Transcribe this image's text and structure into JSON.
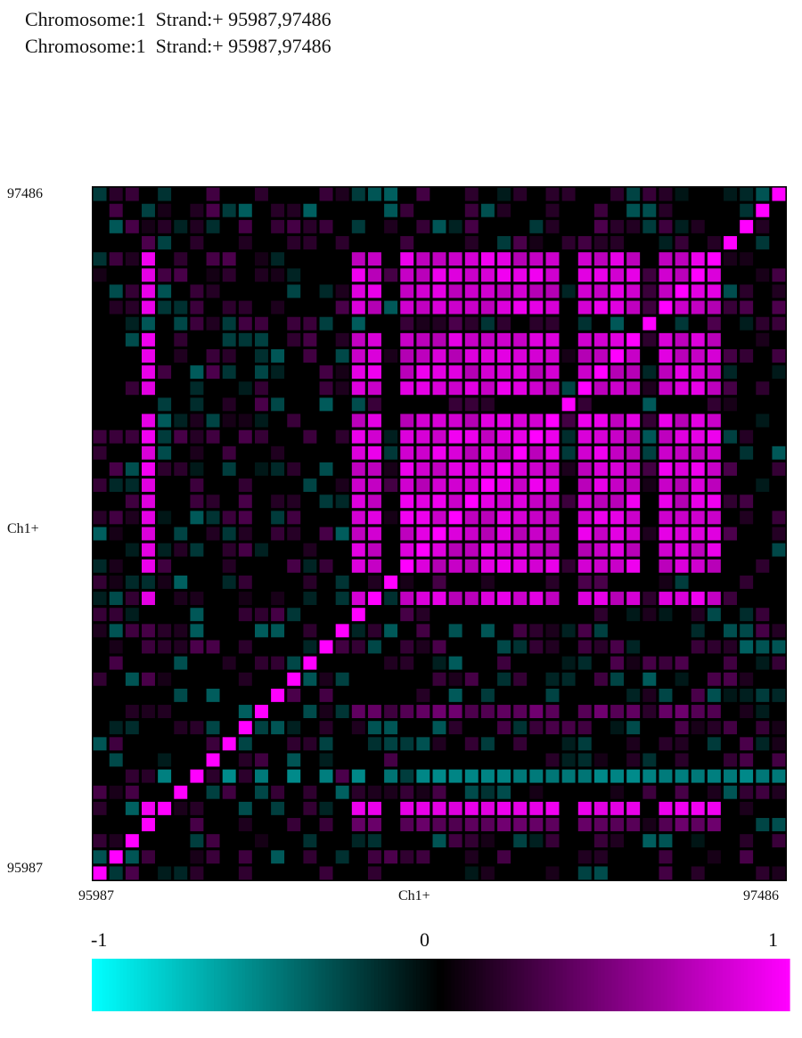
{
  "header": {
    "line1": "Chromosome:1  Strand:+ 95987,97486",
    "line2": "Chromosome:1  Strand:+ 95987,97486"
  },
  "colors": {
    "background": "#000000",
    "negative": "#00ffff",
    "positive": "#ff00ff",
    "zero": "#000000"
  },
  "chart_data": {
    "type": "heatmap",
    "x_label": "Ch1+",
    "y_label": "Ch1+",
    "x_ticks": [
      "95987",
      "97486"
    ],
    "y_ticks": [
      "95987",
      "97486"
    ],
    "x_range": [
      95987,
      97486
    ],
    "y_range": [
      95987,
      97486
    ],
    "grid_size": 43,
    "value_range": [
      -1,
      1
    ],
    "colorbar": {
      "labels": [
        "-1",
        "0",
        "1"
      ],
      "values": [
        -1,
        0,
        1
      ]
    },
    "block_positive_rows": [
      4,
      5,
      6,
      7,
      9,
      10,
      11,
      12,
      14,
      15,
      16,
      17,
      18,
      19,
      20,
      21,
      22,
      23,
      25
    ],
    "block_positive_cols": [
      16,
      17,
      19,
      20,
      21,
      22,
      23,
      24,
      25,
      26,
      27,
      28,
      30,
      31,
      32,
      33,
      35,
      36,
      37,
      38
    ],
    "block_value": 0.95,
    "row_stripe_rows": [
      38
    ],
    "row_stripe_cols": [
      3,
      16,
      17,
      19,
      20,
      21,
      22,
      23,
      24,
      25,
      26,
      27,
      28,
      30,
      31,
      32,
      33,
      35,
      36,
      37,
      38
    ],
    "column_stripe_cols": [
      3
    ],
    "column_stripe_rows": [
      4,
      5,
      6,
      7,
      9,
      10,
      11,
      12,
      14,
      15,
      16,
      17,
      18,
      19,
      20,
      21,
      22,
      23,
      25,
      38
    ],
    "diagonal_value": 1.0,
    "cyan_band_rows": [
      36
    ],
    "cyan_band_value": -0.45,
    "purple_band_rows": [
      32,
      39
    ],
    "purple_band_value": 0.3
  }
}
